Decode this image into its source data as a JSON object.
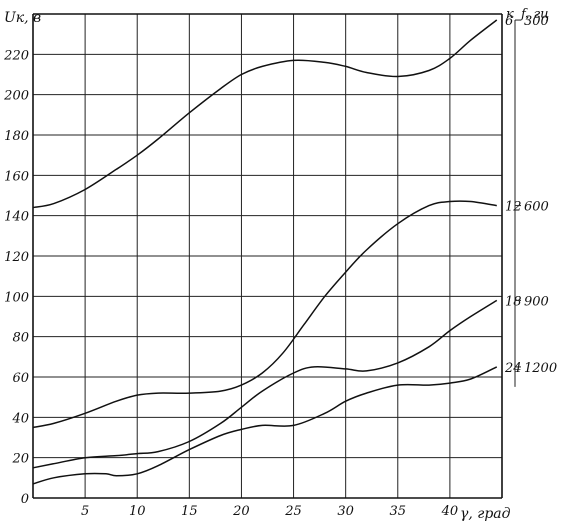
{
  "chart_data": {
    "type": "line",
    "ylabel": "Uк, в",
    "xlabel": "γ, град",
    "xlim": [
      0,
      45
    ],
    "ylim": [
      0,
      240
    ],
    "x_ticks": [
      "5",
      "10",
      "15",
      "20",
      "25",
      "30",
      "35",
      "40"
    ],
    "y_ticks": [
      "0",
      "20",
      "40",
      "60",
      "80",
      "100",
      "120",
      "140",
      "160",
      "180",
      "200",
      "220"
    ],
    "grid": true,
    "right_axis_labels": {
      "k": "к",
      "f": "f, гц"
    },
    "series": [
      {
        "name": "6",
        "f": "300",
        "x": [
          0,
          2,
          5,
          8,
          10,
          12,
          15,
          18,
          20,
          22,
          25,
          28,
          30,
          32,
          35,
          38,
          40,
          42,
          44.5
        ],
        "y": [
          144,
          146,
          153,
          163,
          170,
          178,
          191,
          203,
          210,
          214,
          217,
          216,
          214,
          211,
          209,
          212,
          218,
          227,
          237
        ]
      },
      {
        "name": "12",
        "f": "600",
        "x": [
          0,
          2,
          5,
          8,
          10,
          12,
          15,
          18,
          20,
          22,
          24,
          26,
          28,
          30,
          32,
          35,
          38,
          40,
          42,
          44.5
        ],
        "y": [
          35,
          37,
          42,
          48,
          51,
          52,
          52,
          53,
          56,
          62,
          72,
          86,
          100,
          112,
          123,
          136,
          145,
          147,
          147,
          145
        ]
      },
      {
        "name": "18",
        "f": "900",
        "x": [
          0,
          2,
          5,
          8,
          10,
          12,
          15,
          18,
          20,
          22,
          25,
          27,
          30,
          32,
          35,
          38,
          40,
          42,
          44.5
        ],
        "y": [
          15,
          17,
          20,
          21,
          22,
          23,
          28,
          37,
          45,
          53,
          62,
          65,
          64,
          63,
          67,
          75,
          83,
          90,
          98
        ]
      },
      {
        "name": "24",
        "f": "1200",
        "x": [
          0,
          2,
          5,
          7,
          8,
          10,
          12,
          15,
          18,
          20,
          22,
          25,
          28,
          30,
          32,
          35,
          38,
          40,
          42,
          44.5
        ],
        "y": [
          7,
          10,
          12,
          12,
          11,
          12,
          16,
          24,
          31,
          34,
          36,
          36,
          42,
          48,
          52,
          56,
          56,
          57,
          59,
          65
        ]
      }
    ]
  }
}
